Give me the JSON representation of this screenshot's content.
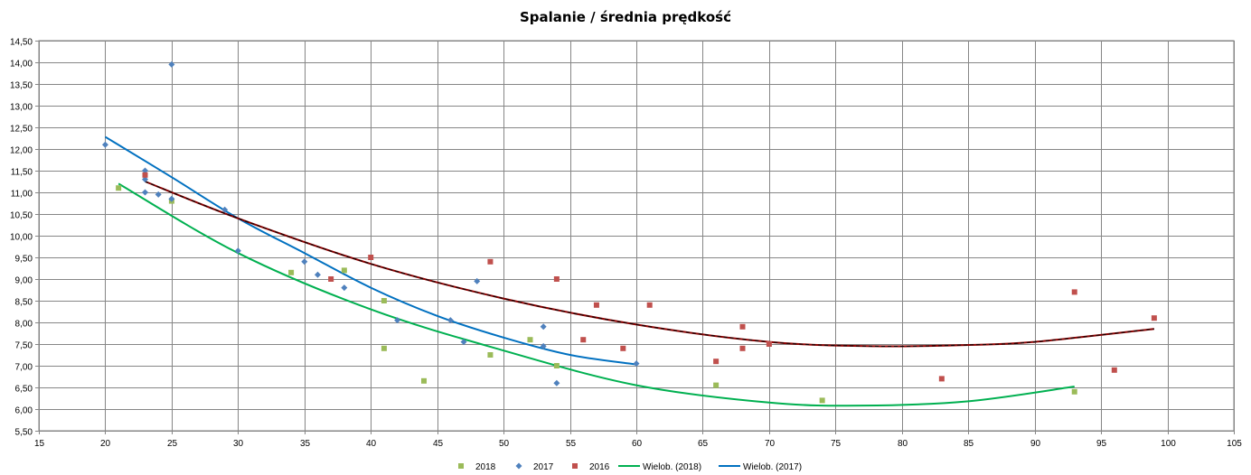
{
  "chart_data": {
    "type": "scatter",
    "title": "Spalanie / średnia prędkość",
    "xlabel": "",
    "ylabel": "",
    "xlim": [
      15,
      105
    ],
    "ylim": [
      5.5,
      14.5
    ],
    "x_ticks": [
      "15",
      "20",
      "25",
      "30",
      "35",
      "40",
      "45",
      "50",
      "55",
      "60",
      "65",
      "70",
      "75",
      "80",
      "85",
      "90",
      "95",
      "100",
      "105"
    ],
    "y_ticks": [
      "5,50",
      "6,00",
      "6,50",
      "7,00",
      "7,50",
      "8,00",
      "8,50",
      "9,00",
      "9,50",
      "10,00",
      "10,50",
      "11,00",
      "11,50",
      "12,00",
      "12,50",
      "13,00",
      "13,50",
      "14,00",
      "14,50"
    ],
    "grid": true,
    "legend_position": "bottom",
    "series": [
      {
        "name": "2018",
        "marker": "square",
        "color": "#9BBB59",
        "points": [
          [
            21,
            11.1
          ],
          [
            25,
            10.8
          ],
          [
            34,
            9.15
          ],
          [
            38,
            9.2
          ],
          [
            41,
            8.5
          ],
          [
            41,
            7.4
          ],
          [
            44,
            6.65
          ],
          [
            49,
            7.25
          ],
          [
            52,
            7.6
          ],
          [
            54,
            7.0
          ],
          [
            66,
            6.55
          ],
          [
            74,
            6.2
          ],
          [
            93,
            6.4
          ]
        ]
      },
      {
        "name": "2017",
        "marker": "diamond",
        "color": "#4F81BD",
        "points": [
          [
            20,
            12.1
          ],
          [
            23,
            11.5
          ],
          [
            23,
            11.3
          ],
          [
            23,
            11.0
          ],
          [
            24,
            10.95
          ],
          [
            25,
            13.95
          ],
          [
            25,
            10.85
          ],
          [
            29,
            10.6
          ],
          [
            30,
            9.65
          ],
          [
            35,
            9.4
          ],
          [
            36,
            9.1
          ],
          [
            38,
            8.8
          ],
          [
            42,
            8.05
          ],
          [
            46,
            8.05
          ],
          [
            47,
            7.55
          ],
          [
            48,
            8.95
          ],
          [
            53,
            7.9
          ],
          [
            53,
            7.45
          ],
          [
            54,
            6.6
          ],
          [
            60,
            7.05
          ]
        ]
      },
      {
        "name": "2016",
        "marker": "square",
        "color": "#C0504D",
        "points": [
          [
            23,
            11.4
          ],
          [
            37,
            9.0
          ],
          [
            40,
            9.5
          ],
          [
            49,
            9.4
          ],
          [
            54,
            9.0
          ],
          [
            56,
            7.6
          ],
          [
            57,
            8.4
          ],
          [
            59,
            7.4
          ],
          [
            61,
            8.4
          ],
          [
            66,
            7.1
          ],
          [
            68,
            7.9
          ],
          [
            68,
            7.4
          ],
          [
            70,
            7.5
          ],
          [
            83,
            6.7
          ],
          [
            93,
            8.7
          ],
          [
            96,
            6.9
          ],
          [
            99,
            8.1
          ]
        ]
      }
    ],
    "trendlines": [
      {
        "name": "Wielob. (2018)",
        "color": "#00B050",
        "x_range": [
          21,
          93
        ],
        "points": [
          [
            21,
            11.2
          ],
          [
            30,
            9.6
          ],
          [
            40,
            8.3
          ],
          [
            50,
            7.35
          ],
          [
            60,
            6.55
          ],
          [
            70,
            6.15
          ],
          [
            77,
            6.08
          ],
          [
            85,
            6.18
          ],
          [
            93,
            6.52
          ]
        ]
      },
      {
        "name": "Wielob. (2017)",
        "color": "#0070C0",
        "x_range": [
          20,
          60
        ],
        "points": [
          [
            20,
            12.28
          ],
          [
            25,
            11.35
          ],
          [
            30,
            10.4
          ],
          [
            35,
            9.6
          ],
          [
            40,
            8.8
          ],
          [
            45,
            8.15
          ],
          [
            50,
            7.65
          ],
          [
            55,
            7.25
          ],
          [
            60,
            7.03
          ]
        ]
      },
      {
        "name": "",
        "color": "#8B0000",
        "x_range": [
          23,
          99
        ],
        "points": [
          [
            23,
            11.25
          ],
          [
            30,
            10.4
          ],
          [
            40,
            9.35
          ],
          [
            50,
            8.55
          ],
          [
            60,
            7.95
          ],
          [
            70,
            7.55
          ],
          [
            78,
            7.45
          ],
          [
            85,
            7.48
          ],
          [
            90,
            7.55
          ],
          [
            99,
            7.85
          ]
        ]
      }
    ],
    "legend": [
      "2018",
      "2017",
      "2016",
      "Wielob. (2018)",
      "Wielob. (2017)"
    ]
  }
}
